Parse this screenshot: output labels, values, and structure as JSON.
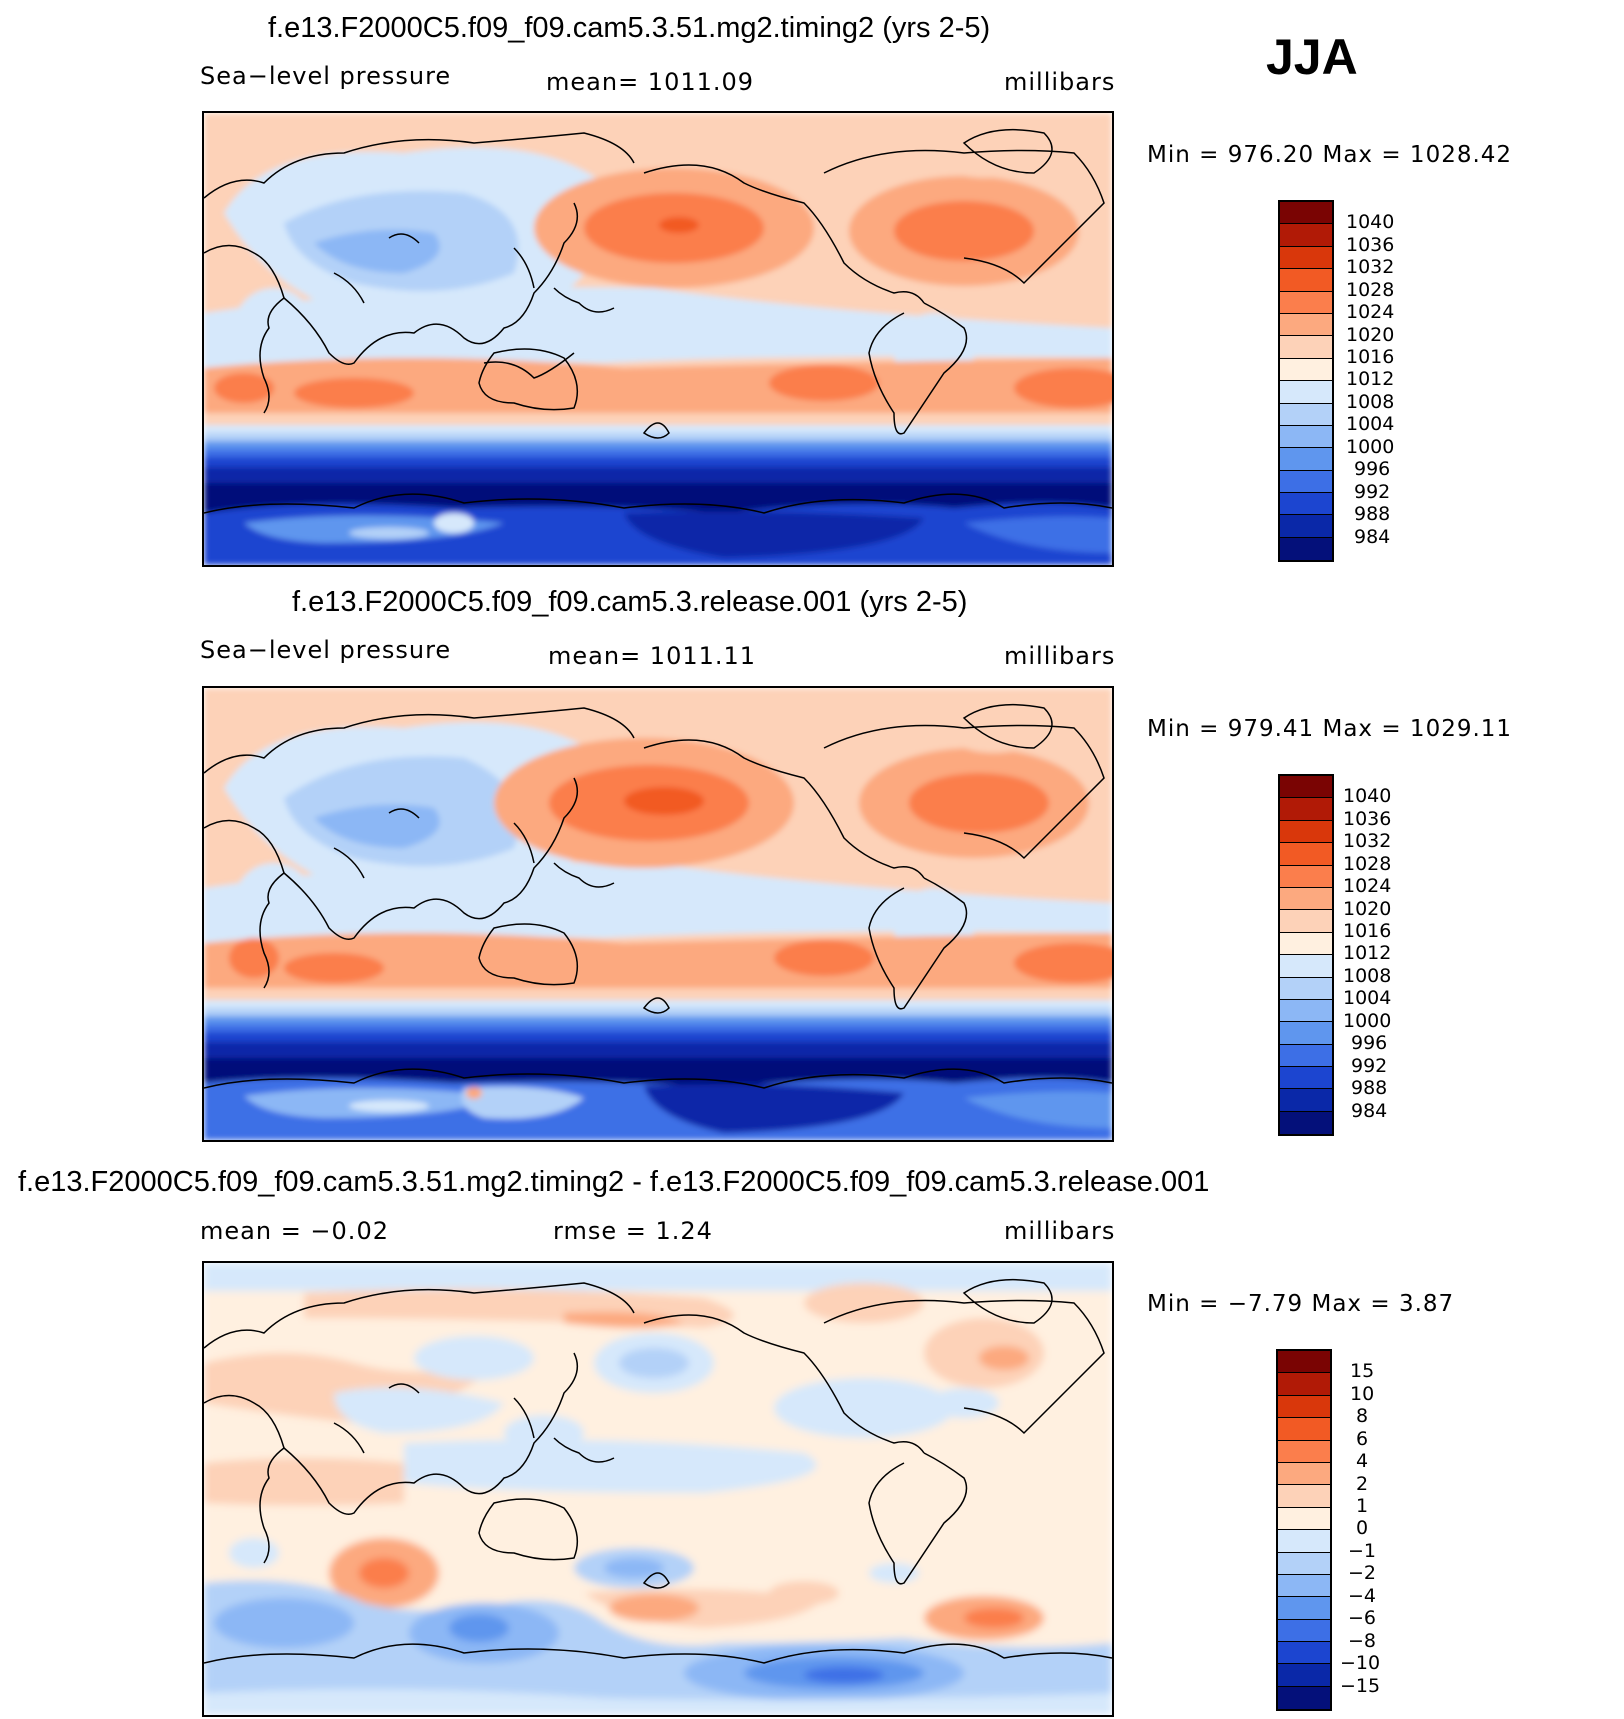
{
  "season": "JJA",
  "panels": [
    {
      "title": "f.e13.F2000C5.f09_f09.cam5.3.51.mg2.timing2 (yrs 2-5)",
      "left_label": "Sea−level pressure",
      "center_label": "mean=  1011.09",
      "units": "millibars",
      "minmax": "Min  =  976.20  Max  =  1028.42",
      "colorbar": {
        "labels": [
          "1040",
          "1036",
          "1032",
          "1028",
          "1024",
          "1020",
          "1016",
          "1012",
          "1008",
          "1004",
          "1000",
          "996",
          "992",
          "988",
          "984"
        ],
        "colors": [
          "#7a0403",
          "#b11a06",
          "#d9370b",
          "#f25a24",
          "#fb7e4c",
          "#fca97f",
          "#fdd2b8",
          "#fff0e0",
          "#d6e8fb",
          "#b3d1f8",
          "#8cb7f5",
          "#5f96ee",
          "#3d6fe6",
          "#1c45d0",
          "#0a28a8",
          "#04107a"
        ]
      }
    },
    {
      "title": "f.e13.F2000C5.f09_f09.cam5.3.release.001 (yrs 2-5)",
      "left_label": "Sea−level pressure",
      "center_label": "mean=  1011.11",
      "units": "millibars",
      "minmax": "Min  =  979.41  Max  =  1029.11",
      "colorbar": {
        "labels": [
          "1040",
          "1036",
          "1032",
          "1028",
          "1024",
          "1020",
          "1016",
          "1012",
          "1008",
          "1004",
          "1000",
          "996",
          "992",
          "988",
          "984"
        ],
        "colors": [
          "#7a0403",
          "#b11a06",
          "#d9370b",
          "#f25a24",
          "#fb7e4c",
          "#fca97f",
          "#fdd2b8",
          "#fff0e0",
          "#d6e8fb",
          "#b3d1f8",
          "#8cb7f5",
          "#5f96ee",
          "#3d6fe6",
          "#1c45d0",
          "#0a28a8",
          "#04107a"
        ]
      }
    },
    {
      "title": "f.e13.F2000C5.f09_f09.cam5.3.51.mg2.timing2 - f.e13.F2000C5.f09_f09.cam5.3.release.001",
      "left_label": "mean  =    −0.02",
      "center_label": "rmse  =     1.24",
      "units": "millibars",
      "minmax": "Min  =    −7.79  Max  =     3.87",
      "colorbar": {
        "labels": [
          "15",
          "10",
          "8",
          "6",
          "4",
          "2",
          "1",
          "0",
          "−1",
          "−2",
          "−4",
          "−6",
          "−8",
          "−10",
          "−15"
        ],
        "colors": [
          "#7a0403",
          "#b11a06",
          "#d9370b",
          "#f25a24",
          "#fb7e4c",
          "#fca97f",
          "#fdd2b8",
          "#fff0e0",
          "#d6e8fb",
          "#b3d1f8",
          "#8cb7f5",
          "#5f96ee",
          "#3d6fe6",
          "#1c45d0",
          "#0a28a8",
          "#04107a"
        ]
      }
    }
  ]
}
